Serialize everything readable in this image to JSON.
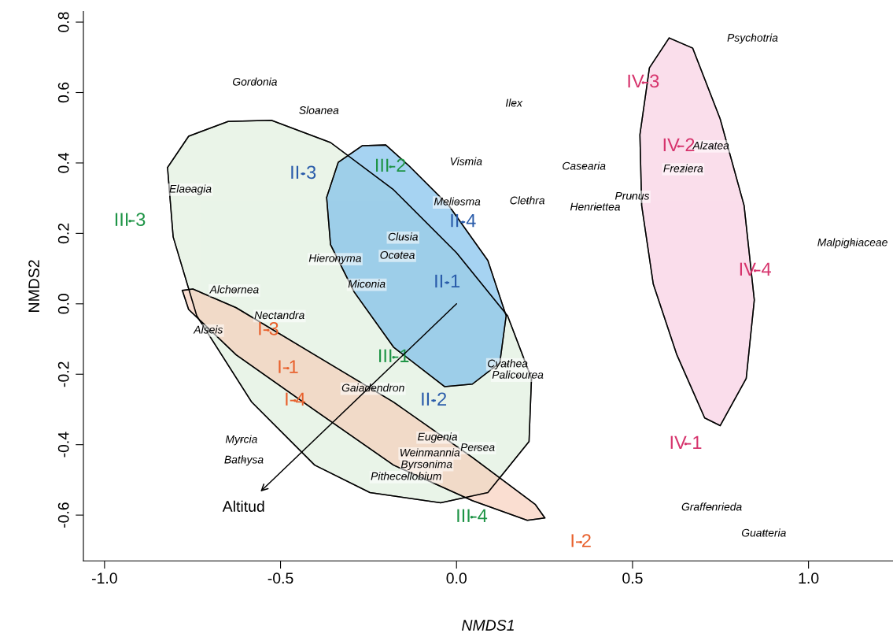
{
  "chart_data": {
    "type": "scatter",
    "xlabel": "NMDS1",
    "ylabel": "NMDS2",
    "xlim": [
      -1.06,
      1.24
    ],
    "ylim": [
      -0.73,
      0.83
    ],
    "xticks": [
      {
        "value": -1.0,
        "label": "-1.0"
      },
      {
        "value": -0.5,
        "label": "-0.5"
      },
      {
        "value": 0.0,
        "label": "0.0"
      },
      {
        "value": 0.5,
        "label": "0.5"
      },
      {
        "value": 1.0,
        "label": "1.0"
      }
    ],
    "yticks": [
      {
        "value": -0.6,
        "label": "-0.6"
      },
      {
        "value": -0.4,
        "label": "-0.4"
      },
      {
        "value": -0.2,
        "label": "-0.2"
      },
      {
        "value": 0.0,
        "label": "0.0"
      },
      {
        "value": 0.2,
        "label": "0.2"
      },
      {
        "value": 0.4,
        "label": "0.4"
      },
      {
        "value": 0.6,
        "label": "0.6"
      },
      {
        "value": 0.8,
        "label": "0.8"
      }
    ],
    "grid": false,
    "marker": "none",
    "series": [
      {
        "type": "area",
        "color": "#dcedd9",
        "x": [
          -0.821,
          -0.761,
          -0.649,
          -0.526,
          -0.358,
          -0.179,
          0.0,
          0.145,
          0.213,
          0.206,
          0.089,
          -0.045,
          -0.246,
          -0.403,
          -0.582,
          -0.738,
          -0.805
        ],
        "values": [
          0.387,
          0.476,
          0.518,
          0.521,
          0.458,
          0.324,
          0.145,
          -0.034,
          -0.212,
          -0.391,
          -0.536,
          -0.565,
          -0.536,
          -0.458,
          -0.279,
          -0.034,
          0.19
        ]
      },
      {
        "type": "area",
        "color": "#f7c9b3",
        "x": [
          -0.779,
          -0.749,
          -0.626,
          -0.403,
          -0.179,
          0.045,
          0.224,
          0.251,
          0.201,
          0.045,
          -0.179,
          -0.403,
          -0.626,
          -0.761
        ],
        "values": [
          0.038,
          0.042,
          -0.011,
          -0.145,
          -0.279,
          -0.436,
          -0.57,
          -0.608,
          -0.615,
          -0.559,
          -0.458,
          -0.302,
          -0.145,
          -0.016
        ]
      },
      {
        "type": "area",
        "color": "#6cb6ea",
        "x": [
          -0.369,
          -0.336,
          -0.268,
          -0.201,
          -0.134,
          -0.022,
          0.089,
          0.141,
          0.123,
          0.045,
          -0.034,
          -0.179,
          -0.291,
          -0.358
        ],
        "values": [
          0.302,
          0.402,
          0.449,
          0.451,
          0.391,
          0.279,
          0.123,
          -0.034,
          -0.168,
          -0.228,
          -0.235,
          -0.123,
          0.034,
          0.168
        ]
      },
      {
        "type": "area",
        "color": "#f7c8de",
        "x": [
          0.604,
          0.671,
          0.749,
          0.817,
          0.846,
          0.823,
          0.749,
          0.705,
          0.626,
          0.559,
          0.526,
          0.521,
          0.548
        ],
        "values": [
          0.755,
          0.726,
          0.525,
          0.279,
          0.011,
          -0.212,
          -0.346,
          -0.324,
          -0.145,
          0.056,
          0.279,
          0.48,
          0.67
        ]
      },
      {
        "color": "#000000",
        "x": [
          0.841,
          -0.573,
          -0.391,
          0.163,
          0.027,
          0.362,
          0.723,
          0.644,
          -0.756,
          0.002,
          0.201,
          0.499,
          0.394,
          1.125,
          -0.152,
          -0.168,
          -0.345,
          -0.255,
          -0.631,
          -0.503,
          -0.705,
          0.145,
          0.174,
          -0.237,
          -0.054,
          0.06,
          -0.076,
          -0.085,
          -0.143,
          -0.611,
          -0.604,
          0.725,
          0.873
        ],
        "values": [
          0.753,
          0.628,
          0.547,
          0.568,
          0.402,
          0.389,
          0.447,
          0.382,
          0.324,
          0.288,
          0.291,
          0.304,
          0.273,
          0.172,
          0.188,
          0.136,
          0.127,
          0.054,
          0.038,
          -0.035,
          -0.076,
          -0.172,
          -0.204,
          -0.241,
          -0.38,
          -0.41,
          -0.425,
          -0.458,
          -0.492,
          -0.387,
          -0.445,
          -0.579,
          -0.653
        ],
        "value_labels": [
          "Psychotria",
          "Gordonia",
          "Sloanea",
          "Ilex",
          "Vismia",
          "Casearia",
          "Alzatea",
          "Freziera",
          "Elaeagia",
          "Meliosma",
          "Clethra",
          "Prunus",
          "Henriettea",
          "Malpighiaceae",
          "Clusia",
          "Ocotea",
          "Hieronyma",
          "Miconia",
          "Alchornea",
          "Nectandra",
          "Alseis",
          "Cyathea",
          "Palicourea",
          "Gaiadendron",
          "Eugenia",
          "Persea",
          "Weinmannia",
          "Byrsonima",
          "Pithecellobium",
          "Myrcia",
          "Bathysa",
          "Graffenrieda",
          "Guatteria"
        ]
      },
      {
        "color": "#e8602c",
        "x": [
          -0.535,
          -0.479,
          -0.459,
          0.353
        ],
        "values": [
          -0.075,
          -0.183,
          -0.275,
          -0.677
        ],
        "value_labels": [
          "I-3",
          "I-1",
          "I-4",
          "I-2"
        ]
      },
      {
        "color": "#2a5caa",
        "x": [
          -0.436,
          0.018,
          -0.027,
          -0.065
        ],
        "values": [
          0.369,
          0.232,
          0.06,
          -0.275
        ],
        "value_labels": [
          "II-3",
          "II-4",
          "II-1",
          "II-2"
        ]
      },
      {
        "color": "#1e9446",
        "x": [
          -0.188,
          -0.928,
          -0.179,
          0.043
        ],
        "values": [
          0.389,
          0.235,
          -0.152,
          -0.606
        ],
        "value_labels": [
          "III-2",
          "III-3",
          "III-1",
          "III-4"
        ]
      },
      {
        "color": "#d6336c",
        "x": [
          0.53,
          0.631,
          0.848,
          0.651
        ],
        "values": [
          0.628,
          0.447,
          0.094,
          -0.398
        ],
        "value_labels": [
          "IV-3",
          "IV-2",
          "IV-4",
          "IV-1"
        ]
      }
    ],
    "annotations": [
      "Altitud"
    ]
  }
}
